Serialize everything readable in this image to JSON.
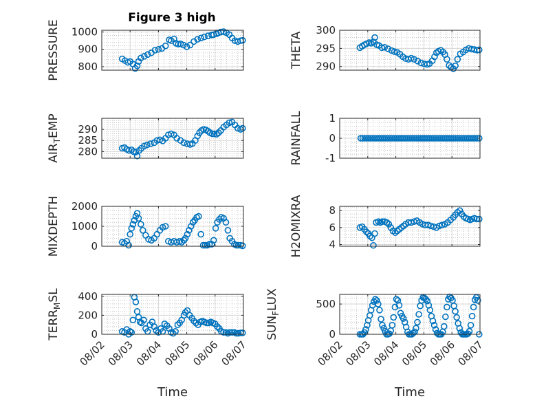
{
  "figure": {
    "title": "Figure 3 high"
  },
  "chart_data": [
    {
      "type": "scatter",
      "ylabel": "PRESSURE",
      "xlabel": "",
      "ylim": [
        780,
        1010
      ],
      "yticks": [
        800,
        900,
        1000
      ],
      "xlim": [
        0,
        5
      ],
      "xticks": [
        0,
        1,
        2,
        3,
        4,
        5
      ],
      "xticklabels": [
        "08/02",
        "08/03",
        "08/04",
        "08/05",
        "08/06",
        "08/07"
      ],
      "show_xticklabels": false,
      "grid": true,
      "series": [
        {
          "x": [
            0.72,
            0.82,
            0.92,
            1.0,
            1.1,
            1.18,
            1.25,
            1.3,
            1.38,
            1.5,
            1.62,
            1.75,
            1.88,
            2.0,
            2.12,
            2.25,
            2.38,
            2.45,
            2.55,
            2.62,
            2.7,
            2.78,
            2.88,
            3.0,
            3.12,
            3.25,
            3.38,
            3.5,
            3.62,
            3.75,
            3.88,
            3.95,
            4.05,
            4.12,
            4.2,
            4.3,
            4.4,
            4.5,
            4.6,
            4.7,
            4.8,
            4.9,
            4.97
          ],
          "y": [
            845,
            835,
            825,
            830,
            815,
            790,
            805,
            830,
            850,
            860,
            870,
            880,
            895,
            900,
            905,
            920,
            955,
            950,
            960,
            935,
            930,
            932,
            925,
            915,
            925,
            945,
            958,
            965,
            972,
            978,
            983,
            985,
            990,
            995,
            1000,
            1002,
            995,
            985,
            965,
            950,
            945,
            950,
            952
          ]
        }
      ]
    },
    {
      "type": "scatter",
      "ylabel": "THETA",
      "xlabel": "",
      "ylim": [
        289,
        300
      ],
      "yticks": [
        290,
        295,
        300
      ],
      "xlim": [
        0,
        5
      ],
      "xticks": [
        0,
        1,
        2,
        3,
        4,
        5
      ],
      "xticklabels": [
        "08/02",
        "08/03",
        "08/04",
        "08/05",
        "08/06",
        "08/07"
      ],
      "show_xticklabels": false,
      "grid": true,
      "series": [
        {
          "x": [
            0.72,
            0.8,
            0.88,
            0.96,
            1.05,
            1.12,
            1.2,
            1.25,
            1.32,
            1.4,
            1.5,
            1.6,
            1.72,
            1.85,
            1.95,
            2.05,
            2.15,
            2.25,
            2.35,
            2.45,
            2.55,
            2.65,
            2.78,
            2.9,
            3.02,
            3.12,
            3.2,
            3.3,
            3.38,
            3.45,
            3.52,
            3.6,
            3.68,
            3.75,
            3.82,
            3.9,
            3.97,
            4.05,
            4.12,
            4.2,
            4.3,
            4.4,
            4.5,
            4.6,
            4.7,
            4.8,
            4.9,
            4.97
          ],
          "y": [
            295.2,
            295.6,
            296.0,
            296.3,
            296.6,
            296.4,
            296.8,
            298.0,
            296.0,
            295.8,
            295.2,
            295.3,
            294.9,
            294.4,
            294.1,
            293.9,
            293.4,
            292.7,
            292.2,
            292.0,
            292.3,
            292.0,
            291.5,
            291.0,
            290.7,
            290.6,
            290.8,
            291.6,
            292.7,
            293.8,
            294.2,
            294.5,
            294.0,
            293.3,
            292.0,
            290.3,
            289.8,
            289.4,
            290.2,
            292.0,
            293.5,
            294.0,
            294.6,
            295.0,
            294.8,
            294.7,
            294.5,
            294.6
          ]
        }
      ]
    },
    {
      "type": "scatter",
      "ylabel": "AIR_TEMP",
      "xlabel": "",
      "ylim": [
        277,
        295
      ],
      "yticks": [
        280,
        285,
        290
      ],
      "xlim": [
        0,
        5
      ],
      "xticks": [
        0,
        1,
        2,
        3,
        4,
        5
      ],
      "xticklabels": [
        "08/02",
        "08/03",
        "08/04",
        "08/05",
        "08/06",
        "08/07"
      ],
      "show_xticklabels": false,
      "grid": true,
      "series": [
        {
          "x": [
            0.72,
            0.8,
            0.88,
            0.96,
            1.05,
            1.12,
            1.2,
            1.25,
            1.32,
            1.4,
            1.5,
            1.6,
            1.72,
            1.85,
            1.95,
            2.05,
            2.15,
            2.25,
            2.35,
            2.45,
            2.55,
            2.65,
            2.78,
            2.9,
            3.02,
            3.12,
            3.2,
            3.3,
            3.38,
            3.45,
            3.52,
            3.6,
            3.68,
            3.75,
            3.82,
            3.9,
            3.97,
            4.05,
            4.12,
            4.2,
            4.3,
            4.4,
            4.5,
            4.6,
            4.7,
            4.8,
            4.9,
            4.97
          ],
          "y": [
            281.5,
            281.8,
            281.0,
            280.5,
            280.8,
            280.0,
            279.8,
            278.0,
            280.5,
            281.5,
            282.5,
            283.0,
            283.5,
            284.0,
            285.0,
            285.3,
            284.8,
            286.0,
            287.5,
            288.0,
            287.5,
            286.0,
            285.0,
            284.0,
            283.5,
            283.2,
            283.6,
            285.0,
            287.0,
            288.5,
            289.5,
            290.0,
            289.8,
            289.2,
            288.5,
            288.0,
            288.0,
            287.8,
            288.5,
            289.5,
            291.0,
            292.0,
            293.0,
            293.3,
            292.0,
            290.5,
            290.0,
            290.5
          ]
        }
      ]
    },
    {
      "type": "scatter",
      "ylabel": "RAINFALL",
      "xlabel": "",
      "ylim": [
        -1,
        1
      ],
      "yticks": [
        -1,
        0,
        1
      ],
      "xlim": [
        0,
        5
      ],
      "xticks": [
        0,
        1,
        2,
        3,
        4,
        5
      ],
      "xticklabels": [
        "08/02",
        "08/03",
        "08/04",
        "08/05",
        "08/06",
        "08/07"
      ],
      "show_xticklabels": false,
      "grid": true,
      "series": [
        {
          "x_start": 0.75,
          "x_end": 4.97,
          "count": 60,
          "y": 0
        }
      ]
    },
    {
      "type": "scatter",
      "ylabel": "MIXDEPTH",
      "xlabel": "",
      "ylim": [
        0,
        2000
      ],
      "yticks": [
        0,
        1000,
        2000
      ],
      "xlim": [
        0,
        5
      ],
      "xticks": [
        0,
        1,
        2,
        3,
        4,
        5
      ],
      "xticklabels": [
        "08/02",
        "08/03",
        "08/04",
        "08/05",
        "08/06",
        "08/07"
      ],
      "show_xticklabels": false,
      "grid": true,
      "series": [
        {
          "x": [
            0.72,
            0.8,
            0.88,
            0.95,
            1.0,
            1.05,
            1.1,
            1.15,
            1.2,
            1.25,
            1.3,
            1.38,
            1.45,
            1.55,
            1.65,
            1.75,
            1.85,
            1.95,
            2.05,
            2.15,
            2.25,
            2.35,
            2.45,
            2.55,
            2.65,
            2.75,
            2.82,
            2.9,
            2.95,
            3.02,
            3.08,
            3.15,
            3.22,
            3.28,
            3.35,
            3.42,
            3.5,
            3.58,
            3.65,
            3.72,
            3.8,
            3.88,
            3.95,
            4.02,
            4.08,
            4.15,
            4.22,
            4.3,
            4.38,
            4.45,
            4.52,
            4.6,
            4.68,
            4.75,
            4.82,
            4.9,
            4.97
          ],
          "y": [
            200,
            150,
            250,
            50,
            600,
            900,
            1100,
            1300,
            1500,
            1650,
            1400,
            1100,
            800,
            550,
            350,
            300,
            400,
            600,
            800,
            950,
            1000,
            250,
            200,
            250,
            200,
            250,
            200,
            300,
            400,
            600,
            800,
            1000,
            1200,
            1300,
            1450,
            1500,
            600,
            50,
            50,
            50,
            100,
            100,
            300,
            900,
            1200,
            1350,
            1450,
            1400,
            1200,
            800,
            400,
            250,
            100,
            50,
            50,
            50,
            20
          ]
        }
      ]
    },
    {
      "type": "scatter",
      "ylabel": "H2OMIXRA",
      "xlabel": "",
      "ylim": [
        3.8,
        8.5
      ],
      "yticks": [
        4,
        6,
        8
      ],
      "xlim": [
        0,
        5
      ],
      "xticks": [
        0,
        1,
        2,
        3,
        4,
        5
      ],
      "xticklabels": [
        "08/02",
        "08/03",
        "08/04",
        "08/05",
        "08/06",
        "08/07"
      ],
      "show_xticklabels": false,
      "grid": true,
      "series": [
        {
          "x": [
            0.72,
            0.8,
            0.88,
            0.95,
            1.02,
            1.08,
            1.15,
            1.2,
            1.25,
            1.3,
            1.38,
            1.45,
            1.52,
            1.6,
            1.68,
            1.75,
            1.82,
            1.9,
            1.98,
            2.05,
            2.12,
            2.2,
            2.28,
            2.35,
            2.45,
            2.55,
            2.65,
            2.75,
            2.85,
            2.95,
            3.05,
            3.15,
            3.25,
            3.35,
            3.45,
            3.55,
            3.65,
            3.75,
            3.85,
            3.95,
            4.05,
            4.12,
            4.2,
            4.28,
            4.35,
            4.42,
            4.5,
            4.58,
            4.65,
            4.72,
            4.8,
            4.88,
            4.97
          ],
          "y": [
            6.0,
            6.1,
            5.8,
            5.5,
            5.3,
            5.0,
            4.8,
            3.9,
            5.3,
            6.6,
            6.7,
            6.6,
            6.7,
            6.7,
            6.6,
            6.4,
            6.0,
            5.6,
            5.4,
            5.6,
            5.8,
            6.0,
            6.2,
            6.4,
            6.6,
            6.6,
            6.7,
            6.8,
            6.6,
            6.4,
            6.3,
            6.3,
            6.2,
            6.1,
            6.0,
            6.2,
            6.3,
            6.4,
            6.6,
            6.9,
            7.2,
            7.5,
            7.8,
            8.0,
            7.6,
            7.3,
            7.1,
            7.0,
            6.9,
            7.0,
            7.1,
            7.0,
            7.0
          ]
        }
      ]
    },
    {
      "type": "scatter",
      "ylabel": "TERR_MSL",
      "xlabel": "Time",
      "ylim": [
        0,
        420
      ],
      "yticks": [
        0,
        200,
        400
      ],
      "xlim": [
        0,
        5
      ],
      "xticks": [
        0,
        1,
        2,
        3,
        4,
        5
      ],
      "xticklabels": [
        "08/02",
        "08/03",
        "08/04",
        "08/05",
        "08/06",
        "08/07"
      ],
      "show_xticklabels": true,
      "grid": true,
      "series": [
        {
          "x": [
            0.72,
            0.8,
            0.88,
            0.95,
            1.0,
            1.05,
            1.1,
            1.15,
            1.2,
            1.25,
            1.3,
            1.35,
            1.4,
            1.48,
            1.55,
            1.62,
            1.7,
            1.78,
            1.85,
            1.92,
            2.0,
            2.08,
            2.15,
            2.22,
            2.3,
            2.38,
            2.45,
            2.52,
            2.6,
            2.68,
            2.75,
            2.82,
            2.9,
            2.95,
            3.02,
            3.1,
            3.18,
            3.25,
            3.32,
            3.4,
            3.48,
            3.55,
            3.62,
            3.7,
            3.78,
            3.85,
            3.92,
            4.0,
            4.08,
            4.15,
            4.22,
            4.3,
            4.38,
            4.45,
            4.52,
            4.6,
            4.68,
            4.75,
            4.82,
            4.9,
            4.97
          ],
          "y": [
            30,
            20,
            50,
            0,
            30,
            20,
            150,
            390,
            340,
            240,
            180,
            130,
            120,
            150,
            60,
            30,
            100,
            130,
            80,
            40,
            20,
            60,
            30,
            110,
            90,
            60,
            20,
            10,
            30,
            100,
            120,
            150,
            200,
            230,
            250,
            200,
            170,
            140,
            120,
            100,
            130,
            140,
            130,
            120,
            120,
            130,
            120,
            110,
            80,
            60,
            30,
            20,
            20,
            10,
            20,
            20,
            20,
            10,
            10,
            15,
            15
          ]
        }
      ]
    },
    {
      "type": "scatter",
      "ylabel": "SUN_FLUX",
      "xlabel": "Time",
      "ylim": [
        0,
        660
      ],
      "yticks": [
        0,
        500
      ],
      "xlim": [
        0,
        5
      ],
      "xticks": [
        0,
        1,
        2,
        3,
        4,
        5
      ],
      "xticklabels": [
        "08/02",
        "08/03",
        "08/04",
        "08/05",
        "08/06",
        "08/07"
      ],
      "show_xticklabels": true,
      "grid": true,
      "series": [
        {
          "x": [
            0.72,
            0.78,
            0.83,
            0.88,
            0.93,
            0.98,
            1.02,
            1.07,
            1.12,
            1.17,
            1.22,
            1.27,
            1.32,
            1.37,
            1.42,
            1.47,
            1.52,
            1.57,
            1.62,
            1.67,
            1.72,
            1.77,
            1.82,
            1.87,
            1.92,
            1.97,
            2.02,
            2.07,
            2.12,
            2.17,
            2.22,
            2.27,
            2.32,
            2.37,
            2.42,
            2.47,
            2.52,
            2.57,
            2.62,
            2.67,
            2.72,
            2.77,
            2.82,
            2.87,
            2.92,
            2.97,
            3.02,
            3.07,
            3.12,
            3.17,
            3.22,
            3.27,
            3.32,
            3.37,
            3.42,
            3.47,
            3.52,
            3.57,
            3.62,
            3.67,
            3.72,
            3.77,
            3.82,
            3.87,
            3.92,
            3.97,
            4.02,
            4.07,
            4.12,
            4.17,
            4.22,
            4.27,
            4.32,
            4.37,
            4.42,
            4.47,
            4.52,
            4.57,
            4.62,
            4.67,
            4.72,
            4.77,
            4.82,
            4.87,
            4.92,
            4.97
          ],
          "y": [
            0,
            0,
            0,
            30,
            80,
            150,
            230,
            310,
            400,
            480,
            540,
            580,
            560,
            500,
            400,
            250,
            150,
            100,
            50,
            0,
            0,
            10,
            60,
            150,
            280,
            450,
            580,
            560,
            480,
            350,
            300,
            260,
            200,
            120,
            40,
            0,
            0,
            0,
            20,
            40,
            100,
            200,
            330,
            470,
            560,
            610,
            600,
            580,
            550,
            480,
            400,
            300,
            220,
            150,
            80,
            20,
            0,
            0,
            0,
            40,
            130,
            290,
            450,
            580,
            620,
            600,
            560,
            470,
            380,
            280,
            180,
            100,
            30,
            0,
            0,
            0,
            0,
            10,
            50,
            150,
            300,
            450,
            570,
            610,
            560,
            0
          ]
        }
      ]
    }
  ]
}
